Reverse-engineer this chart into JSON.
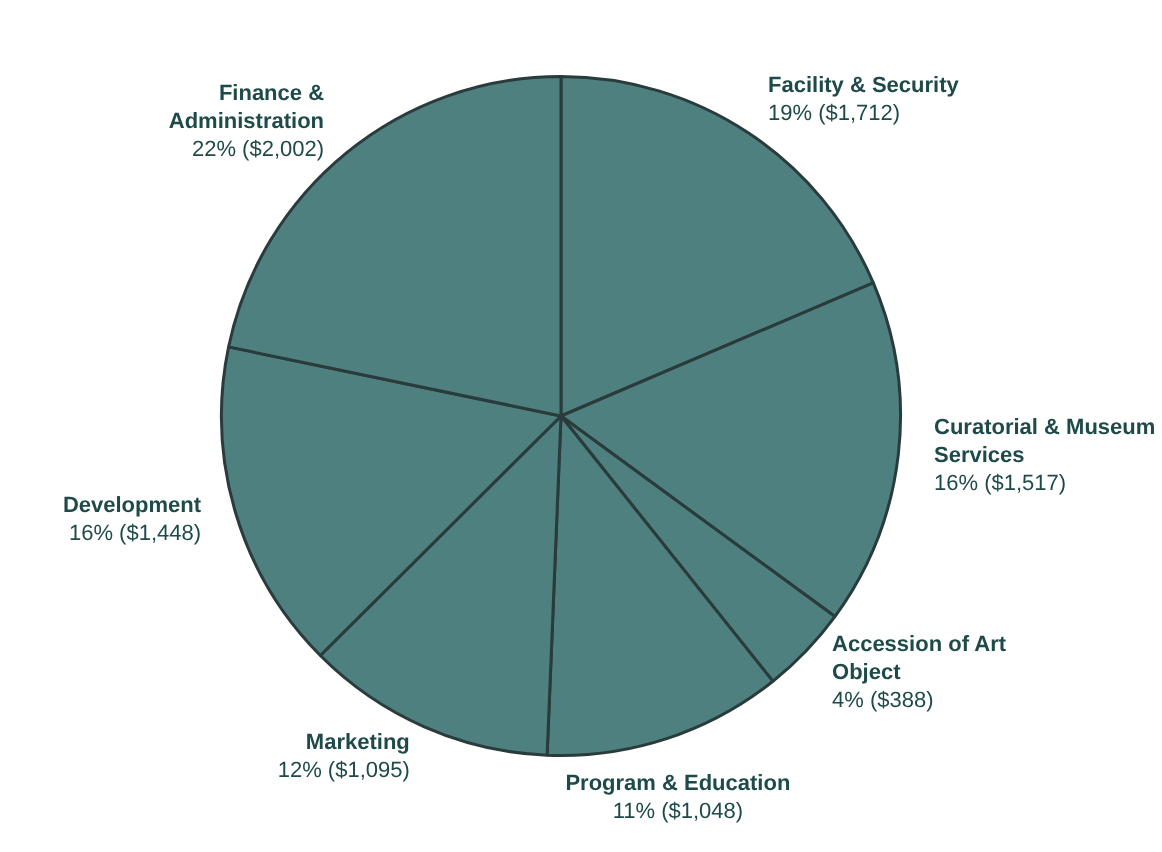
{
  "chart_data": {
    "type": "pie",
    "categories": [
      "Facility & Security",
      "Curatorial & Museum Services",
      "Accession of Art Object",
      "Program & Education",
      "Marketing",
      "Development",
      "Finance & Administration"
    ],
    "values": [
      1712,
      1517,
      388,
      1048,
      1095,
      1448,
      2002
    ],
    "value_labels": [
      "19% ($1,712)",
      "16% ($1,517)",
      "4% ($388)",
      "11% ($1,048)",
      "12% ($1,095)",
      "16% ($1,448)",
      "22% ($2,002)"
    ],
    "colors": [
      "#4e807f",
      "#4e807f",
      "#4e807f",
      "#4e807f",
      "#4e807f",
      "#4e807f",
      "#4e807f"
    ],
    "legend": false
  }
}
